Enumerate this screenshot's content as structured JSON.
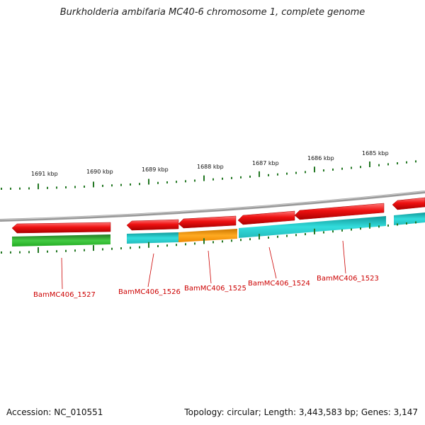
{
  "title": "Burkholderia ambifaria MC40-6 chromosome 1, complete genome",
  "scale_labels": [
    "1691 kbp",
    "1690 kbp",
    "1689 kbp",
    "1688 kbp",
    "1687 kbp",
    "1686 kbp",
    "1685 kbp"
  ],
  "genes": [
    {
      "name": "BamMC406_1527"
    },
    {
      "name": "BamMC406_1526"
    },
    {
      "name": "BamMC406_1525"
    },
    {
      "name": "BamMC406_1524"
    },
    {
      "name": "BamMC406_1523"
    }
  ],
  "colors": {
    "cds": "#ee1111",
    "gene_green": "#33aa33",
    "gene_cyan": "#22cccc",
    "gene_orange": "#ff9900",
    "tick": "#227722",
    "backbone": "#888888",
    "label": "#cc0000"
  },
  "footer": {
    "accession": "Accession: NC_010551",
    "topology": "Topology: circular; Length: 3,443,583 bp; Genes: 3,147"
  }
}
